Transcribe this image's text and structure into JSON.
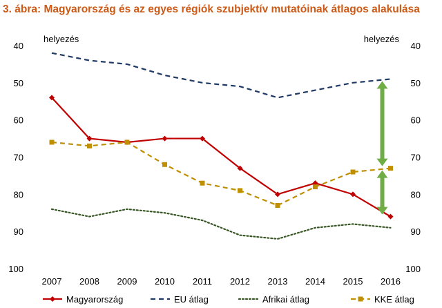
{
  "figure_title": "3. ábra: Magyarország és az egyes régiók szubjektív mutatóinak átlagos alakulása",
  "chart_data": {
    "type": "line",
    "title": "3. ábra: Magyarország és az egyes régiók szubjektív mutatóinak átlagos alakulása",
    "ylabel_left": "helyezés",
    "ylabel_right": "helyezés",
    "y_reversed": true,
    "ylim": [
      40,
      100
    ],
    "yticks": [
      40,
      50,
      60,
      70,
      80,
      90,
      100
    ],
    "grid": false,
    "legend_position": "bottom",
    "categories": [
      "2007",
      "2008",
      "2009",
      "2010",
      "2011",
      "2012",
      "2013",
      "2014",
      "2015",
      "2016"
    ],
    "series": [
      {
        "name": "Magyarország",
        "color": "#c00000",
        "style": "solid",
        "marker": "diamond",
        "values": [
          54,
          65,
          66,
          65,
          65,
          73,
          80,
          77,
          80,
          86
        ]
      },
      {
        "name": "EU átlag",
        "color": "#1f3864",
        "style": "dashed",
        "marker": "none",
        "values": [
          42,
          44,
          45,
          48,
          50,
          51,
          54,
          52,
          50,
          49
        ]
      },
      {
        "name": "Afrikai átlag",
        "color": "#375623",
        "style": "dotted",
        "marker": "none",
        "values": [
          84,
          86,
          84,
          85,
          87,
          91,
          92,
          89,
          88,
          89
        ]
      },
      {
        "name": "KKE átlag",
        "color": "#bf8f00",
        "style": "dashed",
        "marker": "square",
        "values": [
          66,
          67,
          66,
          72,
          77,
          79,
          83,
          78,
          74,
          73
        ]
      }
    ],
    "annotations": [
      {
        "type": "double-arrow",
        "color": "#70ad47",
        "category": "2016",
        "from": 49,
        "to": 73
      },
      {
        "type": "double-arrow",
        "color": "#70ad47",
        "category": "2016",
        "from": 73,
        "to": 86
      }
    ]
  }
}
